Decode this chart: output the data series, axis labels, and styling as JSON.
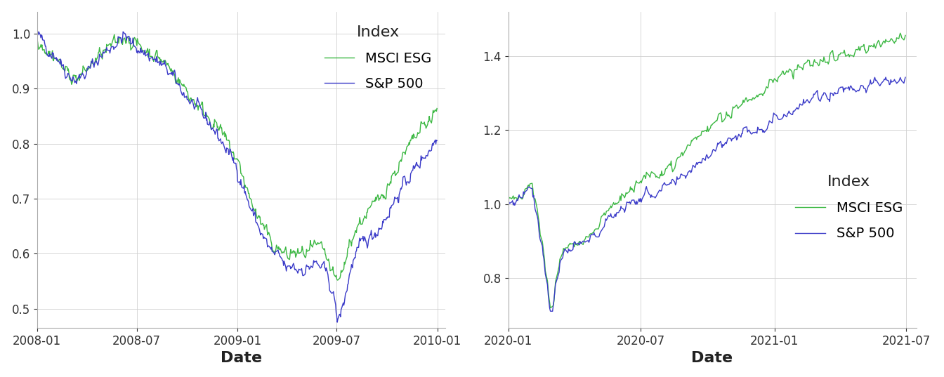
{
  "esg_color": "#3cb843",
  "sp500_color": "#3a3ac8",
  "line_width": 1.0,
  "legend_title": "Index",
  "legend_labels": [
    "MSCI ESG",
    "S&P 500"
  ],
  "xlabel": "Date",
  "panel1_yticks": [
    0.5,
    0.6,
    0.7,
    0.8,
    0.9,
    1.0
  ],
  "panel2_yticks": [
    0.8,
    1.0,
    1.2,
    1.4
  ],
  "background_color": "#ffffff",
  "grid_color": "#d0d0d0",
  "legend_title_fontsize": 16,
  "legend_fontsize": 14,
  "xlabel_fontsize": 16,
  "tick_fontsize": 12
}
